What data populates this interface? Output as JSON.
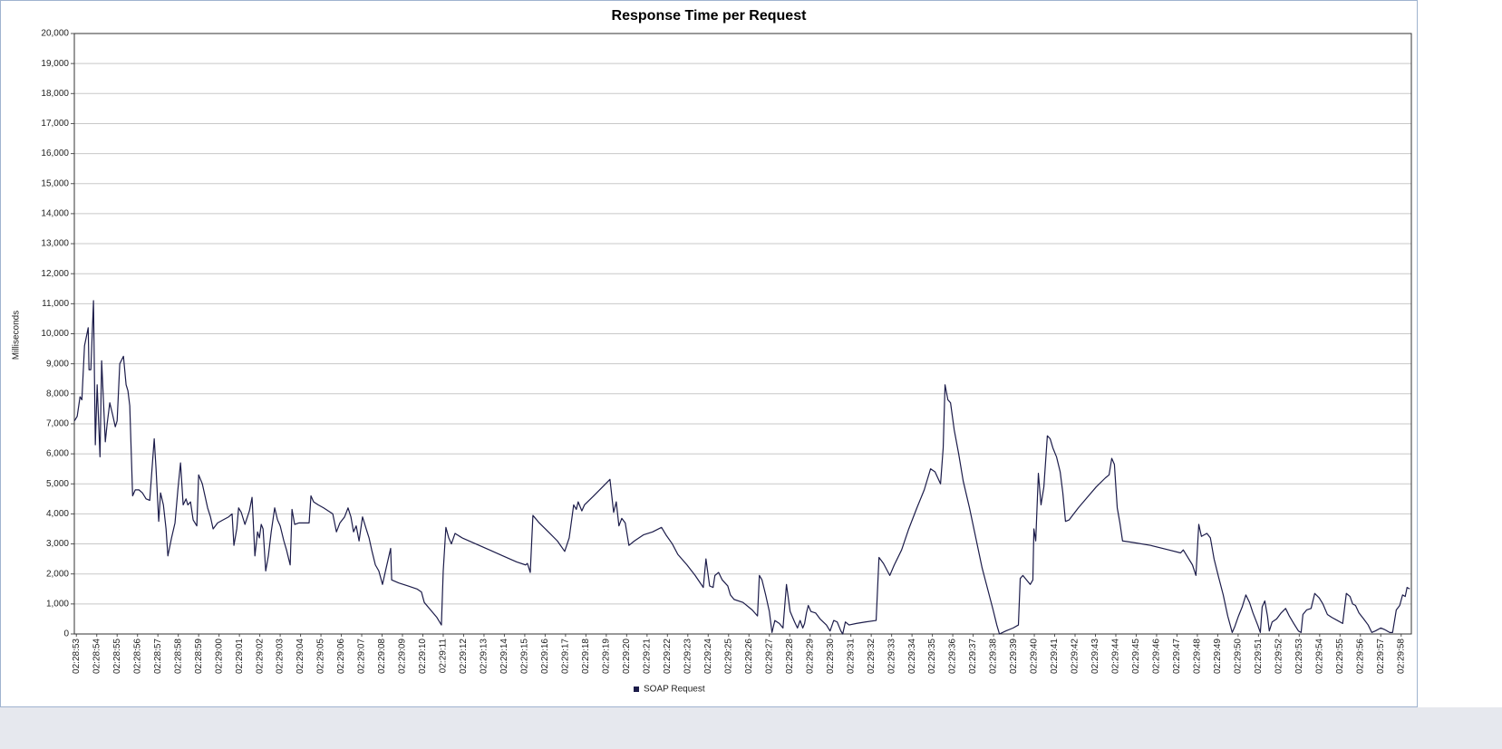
{
  "chart_data": {
    "type": "line",
    "title": "Response Time per Request",
    "y_label": "Milliseconds",
    "grid": true,
    "legend": "bottom",
    "xlim": [
      -0.1,
      65.5
    ],
    "xticks": [
      {
        "value": 0,
        "label": "02:28:53"
      },
      {
        "value": 1,
        "label": "02:28:54"
      },
      {
        "value": 2,
        "label": "02:28:55"
      },
      {
        "value": 3,
        "label": "02:28:56"
      },
      {
        "value": 4,
        "label": "02:28:57"
      },
      {
        "value": 5,
        "label": "02:28:58"
      },
      {
        "value": 6,
        "label": "02:28:59"
      },
      {
        "value": 7,
        "label": "02:29:00"
      },
      {
        "value": 8,
        "label": "02:29:01"
      },
      {
        "value": 9,
        "label": "02:29:02"
      },
      {
        "value": 10,
        "label": "02:29:03"
      },
      {
        "value": 11,
        "label": "02:29:04"
      },
      {
        "value": 12,
        "label": "02:29:05"
      },
      {
        "value": 13,
        "label": "02:29:06"
      },
      {
        "value": 14,
        "label": "02:29:07"
      },
      {
        "value": 15,
        "label": "02:29:08"
      },
      {
        "value": 16,
        "label": "02:29:09"
      },
      {
        "value": 17,
        "label": "02:29:10"
      },
      {
        "value": 18,
        "label": "02:29:11"
      },
      {
        "value": 19,
        "label": "02:29:12"
      },
      {
        "value": 20,
        "label": "02:29:13"
      },
      {
        "value": 21,
        "label": "02:29:14"
      },
      {
        "value": 22,
        "label": "02:29:15"
      },
      {
        "value": 23,
        "label": "02:29:16"
      },
      {
        "value": 24,
        "label": "02:29:17"
      },
      {
        "value": 25,
        "label": "02:29:18"
      },
      {
        "value": 26,
        "label": "02:29:19"
      },
      {
        "value": 27,
        "label": "02:29:20"
      },
      {
        "value": 28,
        "label": "02:29:21"
      },
      {
        "value": 29,
        "label": "02:29:22"
      },
      {
        "value": 30,
        "label": "02:29:23"
      },
      {
        "value": 31,
        "label": "02:29:24"
      },
      {
        "value": 32,
        "label": "02:29:25"
      },
      {
        "value": 33,
        "label": "02:29:26"
      },
      {
        "value": 34,
        "label": "02:29:27"
      },
      {
        "value": 35,
        "label": "02:29:28"
      },
      {
        "value": 36,
        "label": "02:29:29"
      },
      {
        "value": 37,
        "label": "02:29:30"
      },
      {
        "value": 38,
        "label": "02:29:31"
      },
      {
        "value": 39,
        "label": "02:29:32"
      },
      {
        "value": 40,
        "label": "02:29:33"
      },
      {
        "value": 41,
        "label": "02:29:34"
      },
      {
        "value": 42,
        "label": "02:29:35"
      },
      {
        "value": 43,
        "label": "02:29:36"
      },
      {
        "value": 44,
        "label": "02:29:37"
      },
      {
        "value": 45,
        "label": "02:29:38"
      },
      {
        "value": 46,
        "label": "02:29:39"
      },
      {
        "value": 47,
        "label": "02:29:40"
      },
      {
        "value": 48,
        "label": "02:29:41"
      },
      {
        "value": 49,
        "label": "02:29:42"
      },
      {
        "value": 50,
        "label": "02:29:43"
      },
      {
        "value": 51,
        "label": "02:29:44"
      },
      {
        "value": 52,
        "label": "02:29:45"
      },
      {
        "value": 53,
        "label": "02:29:46"
      },
      {
        "value": 54,
        "label": "02:29:47"
      },
      {
        "value": 55,
        "label": "02:29:48"
      },
      {
        "value": 56,
        "label": "02:29:49"
      },
      {
        "value": 57,
        "label": "02:29:50"
      },
      {
        "value": 58,
        "label": "02:29:51"
      },
      {
        "value": 59,
        "label": "02:29:52"
      },
      {
        "value": 60,
        "label": "02:29:53"
      },
      {
        "value": 61,
        "label": "02:29:54"
      },
      {
        "value": 62,
        "label": "02:29:55"
      },
      {
        "value": 63,
        "label": "02:29:56"
      },
      {
        "value": 64,
        "label": "02:29:57"
      },
      {
        "value": 65,
        "label": "02:29:58"
      }
    ],
    "ylim": [
      0,
      20000
    ],
    "yticks": [
      0,
      {
        "value": 1000,
        "label": "1,000"
      },
      {
        "value": 2000,
        "label": "2,000"
      },
      {
        "value": 3000,
        "label": "3,000"
      },
      {
        "value": 4000,
        "label": "4,000"
      },
      {
        "value": 5000,
        "label": "5,000"
      },
      {
        "value": 6000,
        "label": "6,000"
      },
      {
        "value": 7000,
        "label": "7,000"
      },
      {
        "value": 8000,
        "label": "8,000"
      },
      {
        "value": 9000,
        "label": "9,000"
      },
      {
        "value": 10000,
        "label": "10,000"
      },
      {
        "value": 11000,
        "label": "11,000"
      },
      {
        "value": 12000,
        "label": "12,000"
      },
      {
        "value": 13000,
        "label": "13,000"
      },
      {
        "value": 14000,
        "label": "14,000"
      },
      {
        "value": 15000,
        "label": "15,000"
      },
      {
        "value": 16000,
        "label": "16,000"
      },
      {
        "value": 17000,
        "label": "17,000"
      },
      {
        "value": 18000,
        "label": "18,000"
      },
      {
        "value": 19000,
        "label": "19,000"
      },
      {
        "value": 20000,
        "label": "20,000"
      }
    ],
    "x": [
      -0.09,
      0.04,
      0.18,
      0.27,
      0.4,
      0.58,
      0.62,
      0.71,
      0.84,
      0.93,
      1.02,
      1.16,
      1.24,
      1.42,
      1.51,
      1.64,
      1.78,
      1.91,
      2.0,
      2.13,
      2.31,
      2.44,
      2.53,
      2.62,
      2.76,
      2.89,
      3.07,
      3.24,
      3.42,
      3.6,
      3.69,
      3.82,
      3.91,
      4.04,
      4.13,
      4.27,
      4.4,
      4.49,
      4.67,
      4.84,
      4.98,
      5.11,
      5.24,
      5.38,
      5.47,
      5.6,
      5.73,
      5.91,
      6.0,
      6.18,
      6.31,
      6.44,
      6.58,
      6.71,
      6.93,
      7.2,
      7.47,
      7.64,
      7.73,
      7.87,
      7.96,
      8.09,
      8.27,
      8.49,
      8.62,
      8.76,
      8.89,
      8.98,
      9.07,
      9.16,
      9.29,
      9.42,
      9.56,
      9.73,
      9.87,
      10.0,
      10.18,
      10.31,
      10.49,
      10.58,
      10.71,
      10.93,
      11.2,
      11.42,
      11.51,
      11.64,
      11.87,
      12.13,
      12.36,
      12.58,
      12.76,
      12.93,
      13.16,
      13.33,
      13.47,
      13.6,
      13.73,
      13.87,
      14.04,
      14.22,
      14.36,
      14.49,
      14.67,
      14.84,
      15.02,
      15.2,
      15.42,
      15.47,
      15.82,
      16.27,
      16.71,
      16.93,
      17.07,
      17.38,
      17.69,
      17.91,
      18.0,
      18.13,
      18.27,
      18.4,
      18.58,
      18.93,
      19.6,
      20.27,
      20.93,
      21.6,
      22.04,
      22.13,
      22.27,
      22.4,
      22.71,
      23.16,
      23.6,
      23.96,
      24.18,
      24.4,
      24.53,
      24.62,
      24.8,
      24.93,
      25.38,
      25.82,
      26.18,
      26.36,
      26.49,
      26.62,
      26.76,
      26.93,
      27.11,
      27.38,
      27.82,
      28.27,
      28.71,
      28.93,
      29.24,
      29.51,
      29.96,
      30.36,
      30.76,
      30.89,
      31.07,
      31.24,
      31.33,
      31.51,
      31.69,
      31.96,
      32.09,
      32.27,
      32.71,
      33.16,
      33.42,
      33.51,
      33.64,
      33.82,
      34.0,
      34.13,
      34.27,
      34.49,
      34.67,
      34.84,
      35.02,
      35.24,
      35.38,
      35.51,
      35.64,
      35.73,
      35.82,
      35.91,
      36.04,
      36.27,
      36.49,
      36.8,
      36.98,
      37.16,
      37.33,
      37.51,
      37.6,
      37.73,
      37.91,
      38.27,
      38.71,
      39.24,
      39.38,
      39.6,
      39.91,
      40.13,
      40.49,
      40.84,
      41.24,
      41.6,
      41.91,
      42.13,
      42.4,
      42.53,
      42.62,
      42.76,
      42.89,
      43.07,
      43.29,
      43.51,
      43.82,
      44.13,
      44.44,
      44.71,
      44.98,
      45.16,
      45.29,
      45.6,
      45.96,
      46.22,
      46.31,
      46.44,
      46.62,
      46.8,
      46.93,
      46.98,
      47.07,
      47.2,
      47.33,
      47.47,
      47.64,
      47.78,
      47.91,
      48.09,
      48.27,
      48.4,
      48.53,
      48.71,
      49.16,
      49.6,
      50.04,
      50.49,
      50.67,
      50.8,
      50.93,
      51.07,
      51.2,
      51.33,
      51.82,
      52.71,
      53.6,
      54.18,
      54.31,
      54.49,
      54.76,
      54.93,
      55.07,
      55.2,
      55.33,
      55.47,
      55.64,
      55.82,
      56.04,
      56.27,
      56.49,
      56.71,
      56.84,
      57.02,
      57.2,
      57.38,
      57.56,
      57.73,
      57.96,
      58.09,
      58.18,
      58.31,
      58.44,
      58.53,
      58.67,
      58.89,
      59.11,
      59.33,
      59.51,
      59.73,
      59.96,
      60.09,
      60.18,
      60.36,
      60.58,
      60.76,
      60.98,
      61.16,
      61.38,
      61.6,
      61.87,
      62.13,
      62.31,
      62.49,
      62.62,
      62.76,
      62.93,
      63.16,
      63.38,
      63.56,
      63.73,
      64.0,
      64.18,
      64.44,
      64.58,
      64.76,
      64.93,
      65.07,
      65.2,
      65.29,
      65.42
    ],
    "series": [
      {
        "name": "SOAP Request",
        "color": "#1c1c4a",
        "values": [
          7100,
          7250,
          7900,
          7800,
          9600,
          10200,
          8800,
          8800,
          11100,
          6300,
          8300,
          5900,
          9100,
          6400,
          7000,
          7700,
          7300,
          6900,
          7100,
          9000,
          9250,
          8300,
          8100,
          7600,
          4600,
          4800,
          4800,
          4700,
          4500,
          4450,
          5300,
          6500,
          5500,
          3750,
          4700,
          4300,
          3500,
          2600,
          3200,
          3700,
          4800,
          5700,
          4300,
          4500,
          4300,
          4400,
          3800,
          3600,
          5300,
          5000,
          4600,
          4200,
          3900,
          3500,
          3700,
          3800,
          3900,
          4000,
          2950,
          3500,
          4200,
          4050,
          3650,
          4100,
          4550,
          2600,
          3400,
          3200,
          3650,
          3500,
          2100,
          2600,
          3400,
          4200,
          3800,
          3600,
          3100,
          2800,
          2300,
          4150,
          3650,
          3700,
          3700,
          3700,
          4600,
          4400,
          4300,
          4200,
          4100,
          4000,
          3400,
          3700,
          3900,
          4200,
          3900,
          3400,
          3600,
          3100,
          3900,
          3500,
          3200,
          2800,
          2300,
          2100,
          1650,
          2200,
          2850,
          1800,
          1700,
          1600,
          1500,
          1400,
          1050,
          800,
          550,
          300,
          2100,
          3550,
          3200,
          3000,
          3350,
          3200,
          3000,
          2800,
          2600,
          2400,
          2300,
          2350,
          2050,
          3950,
          3700,
          3400,
          3100,
          2750,
          3200,
          4300,
          4150,
          4400,
          4100,
          4300,
          4600,
          4900,
          5150,
          4050,
          4400,
          3600,
          3850,
          3700,
          2950,
          3100,
          3300,
          3400,
          3550,
          3300,
          3000,
          2650,
          2300,
          1950,
          1550,
          2500,
          1600,
          1550,
          1950,
          2050,
          1800,
          1600,
          1300,
          1150,
          1050,
          800,
          600,
          1950,
          1800,
          1300,
          750,
          50,
          450,
          350,
          200,
          1650,
          750,
          400,
          200,
          450,
          200,
          350,
          700,
          950,
          750,
          700,
          500,
          300,
          100,
          450,
          400,
          100,
          0,
          400,
          300,
          350,
          400,
          450,
          2550,
          2350,
          1950,
          2300,
          2800,
          3500,
          4200,
          4800,
          5500,
          5400,
          5000,
          6200,
          8300,
          7800,
          7700,
          6800,
          6000,
          5100,
          4200,
          3200,
          2200,
          1500,
          800,
          300,
          0,
          100,
          200,
          300,
          1850,
          1950,
          1800,
          1650,
          1800,
          3500,
          3100,
          5350,
          4300,
          4900,
          6600,
          6500,
          6200,
          5900,
          5400,
          4700,
          3750,
          3800,
          4200,
          4550,
          4900,
          5200,
          5300,
          5850,
          5650,
          4200,
          3700,
          3100,
          3050,
          2950,
          2800,
          2700,
          2800,
          2600,
          2300,
          1950,
          3650,
          3250,
          3300,
          3350,
          3200,
          2500,
          1900,
          1300,
          600,
          50,
          250,
          600,
          900,
          1300,
          1050,
          700,
          300,
          50,
          900,
          1100,
          600,
          100,
          400,
          500,
          700,
          850,
          600,
          350,
          100,
          50,
          650,
          800,
          850,
          1350,
          1200,
          1000,
          650,
          550,
          450,
          350,
          1350,
          1250,
          1000,
          950,
          700,
          500,
          300,
          50,
          100,
          200,
          150,
          50,
          50,
          800,
          950,
          1300,
          1250,
          1550,
          1500
        ]
      }
    ]
  }
}
